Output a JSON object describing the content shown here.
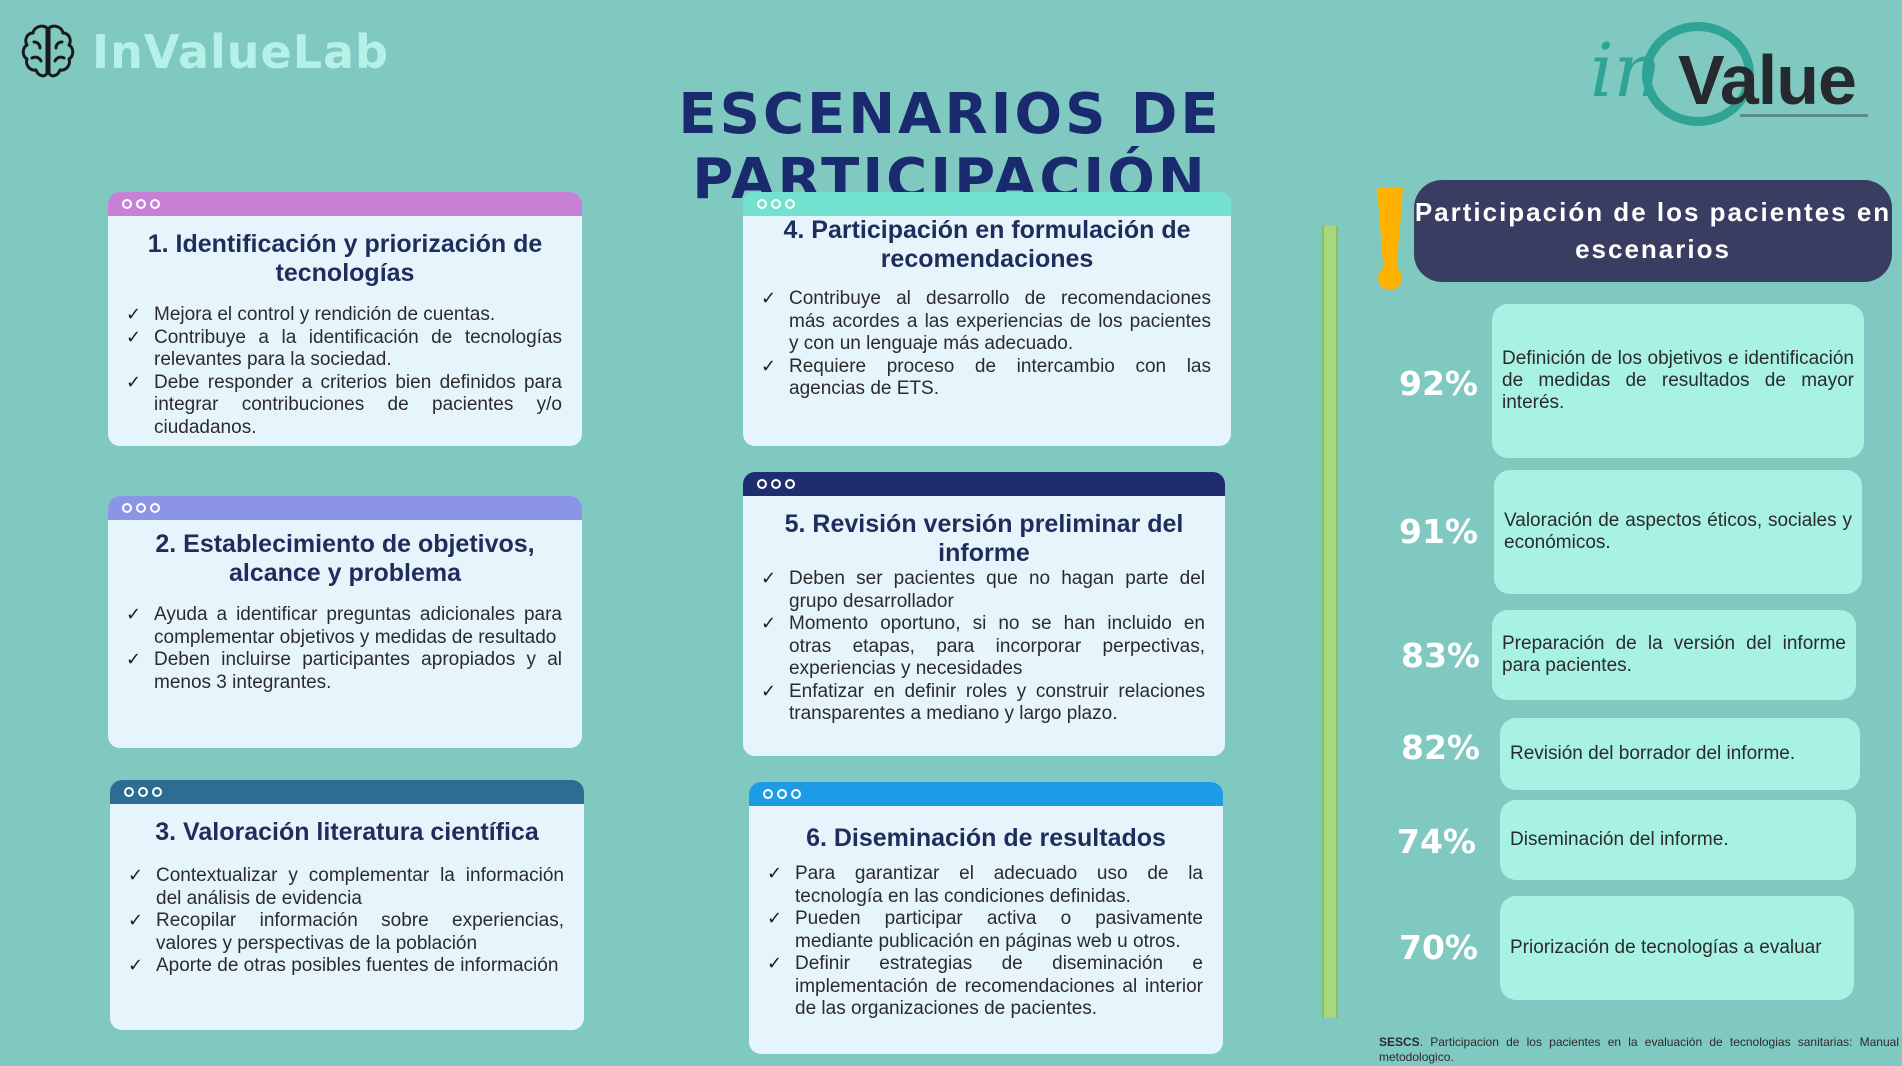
{
  "header": {
    "brand_name": "InValueLab",
    "logo_in": "in",
    "logo_value": "Value",
    "title": "ESCENARIOS DE PARTICIPACIÓN"
  },
  "colors": {
    "background": "#80c9c1",
    "card_bar_1": "#c780d5",
    "card_bar_2": "#8c94e6",
    "card_bar_3": "#2e6c94",
    "card_bar_4": "#72e1cf",
    "card_bar_5": "#1f2c6e",
    "card_bar_6": "#1e9be6",
    "stats_header": "#3a3d62",
    "stats_item": "#a7f2e3",
    "exclamation": "#ffb300"
  },
  "cards": [
    {
      "title": "1. Identificación y priorización de tecnologías",
      "items": [
        "Mejora el control y rendición de cuentas.",
        "Contribuye a la identificación de tecnologías relevantes para la sociedad.",
        "Debe responder a criterios bien definidos para integrar contribuciones de pacientes y/o ciudadanos."
      ]
    },
    {
      "title": "2. Establecimiento de objetivos, alcance y problema",
      "items": [
        "Ayuda a identificar preguntas adicionales para complementar objetivos y medidas de resultado",
        "Deben incluirse participantes apropiados y al menos 3 integrantes."
      ]
    },
    {
      "title": "3. Valoración literatura científica",
      "items": [
        "Contextualizar y complementar la información del análisis de evidencia",
        "Recopilar información sobre experiencias, valores y perspectivas de la población",
        "Aporte de otras posibles fuentes de información"
      ]
    },
    {
      "title": "4. Participación en formulación de recomendaciones",
      "items": [
        "Contribuye al desarrollo de recomendaciones más acordes a las experiencias de los pacientes y con un lenguaje más adecuado.",
        "Requiere proceso de intercambio con las agencias de ETS."
      ]
    },
    {
      "title": "5. Revisión versión preliminar del informe",
      "items": [
        "Deben ser pacientes que no hagan parte del grupo desarrollador",
        "Momento oportuno, si no se han incluido en otras etapas, para incorporar perpectivas, experiencias y necesidades",
        "Enfatizar en definir roles y construir relaciones transparentes a mediano y largo plazo."
      ]
    },
    {
      "title": "6. Diseminación de resultados",
      "items": [
        "Para garantizar el adecuado uso de la tecnología en las condiciones definidas.",
        "Pueden participar activa o pasivamente mediante publicación en páginas web u otros.",
        "Definir estrategias de diseminación e implementación de recomendaciones al interior de las organizaciones de pacientes."
      ]
    }
  ],
  "stats": {
    "title": "Participación de los pacientes en escenarios",
    "items": [
      {
        "percent": "92%",
        "value": 92,
        "label": "Definición de los objetivos e identificación de medidas de resultados de mayor interés."
      },
      {
        "percent": "91%",
        "value": 91,
        "label": "Valoración de aspectos éticos, sociales y económicos."
      },
      {
        "percent": "83%",
        "value": 83,
        "label": "Preparación de la versión del informe para pacientes."
      },
      {
        "percent": "82%",
        "value": 82,
        "label": "Revisión del borrador del informe."
      },
      {
        "percent": "74%",
        "value": 74,
        "label": "Diseminación del informe."
      },
      {
        "percent": "70%",
        "value": 70,
        "label": "Priorización de tecnologías a evaluar"
      }
    ]
  },
  "reference": {
    "bold": "SESCS",
    "text": ". Participacion de los pacientes en la evaluación de tecnologias sanitarias: Manual metodologico."
  }
}
